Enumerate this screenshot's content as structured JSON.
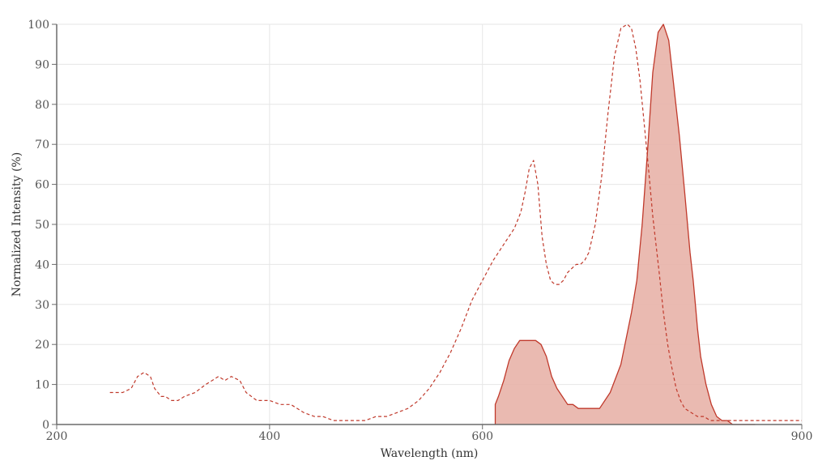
{
  "chart_data": {
    "type": "area",
    "xlabel": "Wavelength (nm)",
    "ylabel": "Normalized Intensity (%)",
    "xlim": [
      200,
      900
    ],
    "ylim": [
      0,
      100
    ],
    "xticks": [
      200,
      400,
      600,
      900
    ],
    "yticks": [
      0,
      10,
      20,
      30,
      40,
      50,
      60,
      70,
      80,
      90,
      100
    ],
    "grid": true,
    "series": [
      {
        "style": "dashed-line",
        "color": "#c0392b",
        "x": [
          250,
          262,
          270,
          276,
          282,
          288,
          292,
          298,
          302,
          308,
          314,
          320,
          330,
          340,
          346,
          352,
          358,
          364,
          372,
          378,
          388,
          400,
          410,
          420,
          432,
          442,
          450,
          460,
          470,
          480,
          490,
          500,
          510,
          520,
          530,
          540,
          550,
          560,
          570,
          580,
          590,
          600,
          610,
          620,
          630,
          636,
          640,
          644,
          648,
          652,
          656,
          660,
          664,
          668,
          672,
          676,
          680,
          684,
          688,
          692,
          696,
          700,
          706,
          712,
          718,
          724,
          730,
          736,
          740,
          744,
          748,
          752,
          756,
          760,
          766,
          770,
          774,
          778,
          782,
          786,
          790,
          796,
          802,
          808,
          814,
          820,
          826,
          836,
          846,
          860,
          880,
          900
        ],
        "y": [
          8,
          8,
          9,
          12,
          13,
          12,
          9,
          7,
          7,
          6,
          6,
          7,
          8,
          10,
          11,
          12,
          11,
          12,
          11,
          8,
          6,
          6,
          5,
          5,
          3,
          2,
          2,
          1,
          1,
          1,
          1,
          2,
          2,
          3,
          4,
          6,
          9,
          13,
          18,
          24,
          31,
          36,
          41,
          45,
          49,
          53,
          58,
          64,
          66,
          60,
          47,
          40,
          36,
          35,
          35,
          36,
          38,
          39,
          40,
          40,
          41,
          43,
          50,
          62,
          78,
          92,
          99,
          100,
          99,
          94,
          86,
          75,
          64,
          52,
          38,
          28,
          20,
          14,
          9,
          6,
          4,
          3,
          2,
          2,
          1,
          1,
          1,
          1,
          1,
          1,
          1,
          1
        ]
      },
      {
        "style": "filled-area",
        "color": "#c0392b",
        "fill": "#e8b3a8",
        "x": [
          612,
          615,
          620,
          625,
          630,
          635,
          640,
          645,
          650,
          655,
          660,
          665,
          670,
          675,
          680,
          685,
          690,
          700,
          710,
          720,
          730,
          740,
          745,
          750,
          755,
          760,
          765,
          770,
          775,
          780,
          785,
          790,
          795,
          798,
          800,
          802,
          805,
          810,
          815,
          820,
          825,
          830,
          835,
          840,
          845,
          850,
          852,
          854,
          856
        ],
        "y": [
          5,
          7,
          11,
          16,
          19,
          21,
          21,
          21,
          21,
          20,
          17,
          12,
          9,
          7,
          5,
          5,
          4,
          4,
          4,
          8,
          15,
          28,
          36,
          50,
          68,
          88,
          98,
          100,
          96,
          84,
          72,
          58,
          43,
          36,
          30,
          24,
          17,
          10,
          5,
          2,
          1,
          1,
          0,
          0,
          0,
          0,
          0,
          0,
          0
        ]
      }
    ]
  }
}
